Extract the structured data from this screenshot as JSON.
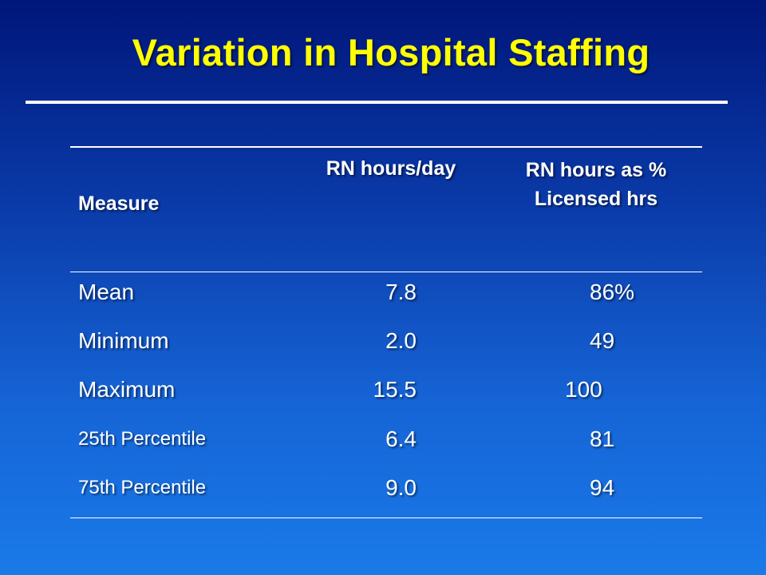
{
  "title": "Variation in Hospital Staffing",
  "table": {
    "headers": {
      "measure": "Measure",
      "rn_hours_day": "RN hours/day",
      "rn_pct_line1": "RN hours as %",
      "rn_pct_line2": "Licensed hrs"
    },
    "rows": [
      {
        "measure": "Mean",
        "rn_hours_day": "7.8",
        "rn_pct": "86%"
      },
      {
        "measure": "Minimum",
        "rn_hours_day": "2.0",
        "rn_pct": "49"
      },
      {
        "measure": "Maximum",
        "rn_hours_day": "15.5",
        "rn_pct": "100"
      },
      {
        "measure": "25th Percentile",
        "rn_hours_day": "6.4",
        "rn_pct": "81"
      },
      {
        "measure": "75th Percentile",
        "rn_hours_day": "9.0",
        "rn_pct": "94"
      }
    ]
  },
  "colors": {
    "title": "#ffff00",
    "text": "#ffffff",
    "background_top": "#00167a",
    "background_bottom": "#1a7ae8"
  }
}
